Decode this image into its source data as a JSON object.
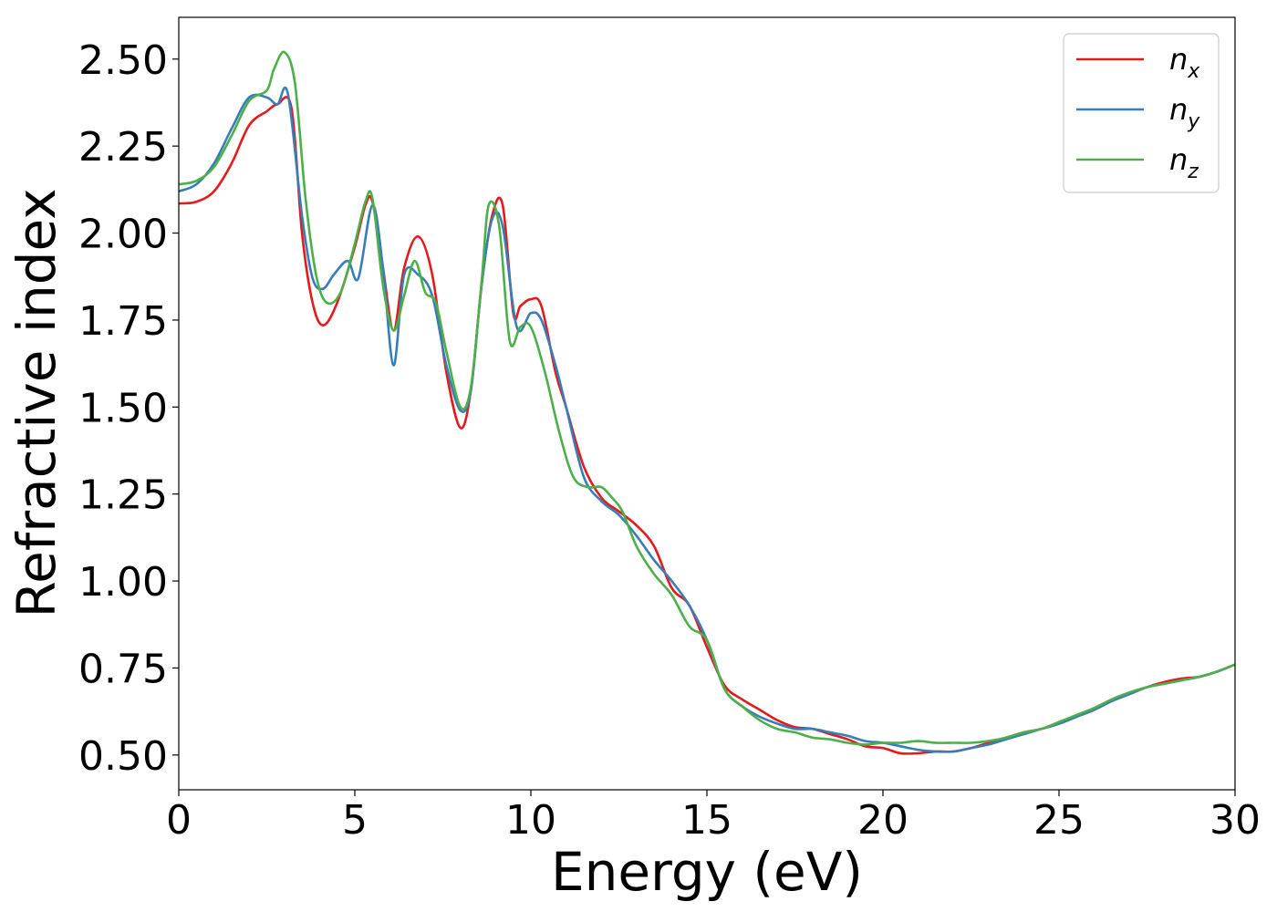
{
  "chart_data": {
    "type": "line",
    "xlabel": "Energy (eV)",
    "ylabel": "Refractive index",
    "xlim": [
      0,
      30
    ],
    "ylim": [
      0.4,
      2.62
    ],
    "xticks": [
      0,
      5,
      10,
      15,
      20,
      25,
      30
    ],
    "xtick_labels": [
      "0",
      "5",
      "10",
      "15",
      "20",
      "25",
      "30"
    ],
    "yticks": [
      0.5,
      0.75,
      1.0,
      1.25,
      1.5,
      1.75,
      2.0,
      2.25,
      2.5
    ],
    "ytick_labels": [
      "0.50",
      "0.75",
      "1.00",
      "1.25",
      "1.50",
      "1.75",
      "2.00",
      "2.25",
      "2.50"
    ],
    "grid": false,
    "legend_position": "top-right",
    "series": [
      {
        "name": "n",
        "subscript": "x",
        "color": "#e41a1c",
        "x": [
          0,
          0.5,
          1,
          1.5,
          2,
          2.5,
          2.8,
          3.2,
          3.5,
          3.8,
          4.1,
          4.5,
          5,
          5.3,
          5.5,
          5.8,
          6.1,
          6.4,
          6.8,
          7.2,
          7.6,
          8,
          8.3,
          8.6,
          8.9,
          9.2,
          9.5,
          9.7,
          10,
          10.3,
          10.7,
          11,
          11.5,
          12,
          12.5,
          13,
          13.5,
          14,
          14.5,
          15,
          15.5,
          16,
          16.5,
          17,
          17.5,
          18,
          18.5,
          19,
          19.5,
          20,
          20.5,
          21,
          21.5,
          22,
          22.5,
          23,
          23.5,
          24,
          24.5,
          25,
          25.5,
          26,
          26.5,
          27,
          27.5,
          28,
          28.5,
          29,
          29.5,
          30
        ],
        "y": [
          2.085,
          2.09,
          2.12,
          2.2,
          2.31,
          2.35,
          2.37,
          2.36,
          2.0,
          1.8,
          1.735,
          1.8,
          1.96,
          2.08,
          2.09,
          1.9,
          1.72,
          1.9,
          1.99,
          1.88,
          1.6,
          1.44,
          1.55,
          1.85,
          2.05,
          2.08,
          1.77,
          1.79,
          1.81,
          1.79,
          1.6,
          1.5,
          1.33,
          1.24,
          1.2,
          1.16,
          1.1,
          0.98,
          0.93,
          0.81,
          0.7,
          0.66,
          0.63,
          0.6,
          0.58,
          0.575,
          0.56,
          0.545,
          0.525,
          0.52,
          0.505,
          0.505,
          0.51,
          0.51,
          0.52,
          0.535,
          0.55,
          0.565,
          0.575,
          0.59,
          0.61,
          0.63,
          0.655,
          0.675,
          0.695,
          0.71,
          0.72,
          0.725,
          0.74,
          0.76
        ]
      },
      {
        "name": "n",
        "subscript": "y",
        "color": "#377eb8",
        "x": [
          0,
          0.5,
          1,
          1.5,
          2,
          2.5,
          2.8,
          3.1,
          3.5,
          3.8,
          4.1,
          4.4,
          4.8,
          5.1,
          5.5,
          5.8,
          6.1,
          6.4,
          6.8,
          7.2,
          7.6,
          8,
          8.3,
          8.6,
          8.9,
          9.2,
          9.6,
          10,
          10.3,
          10.7,
          11,
          11.5,
          12,
          12.5,
          13,
          13.5,
          14,
          14.5,
          15,
          15.5,
          16,
          16.5,
          17,
          17.5,
          18,
          18.5,
          19,
          19.5,
          20,
          20.5,
          21,
          21.5,
          22,
          22.5,
          23,
          23.5,
          24,
          24.5,
          25,
          25.5,
          26,
          26.5,
          27,
          27.5,
          28,
          28.5,
          29,
          29.5,
          30
        ],
        "y": [
          2.12,
          2.14,
          2.2,
          2.3,
          2.39,
          2.39,
          2.37,
          2.4,
          2.05,
          1.87,
          1.84,
          1.88,
          1.92,
          1.87,
          2.08,
          1.9,
          1.62,
          1.88,
          1.88,
          1.82,
          1.62,
          1.49,
          1.55,
          1.85,
          2.04,
          2.02,
          1.73,
          1.77,
          1.75,
          1.62,
          1.5,
          1.3,
          1.23,
          1.19,
          1.13,
          1.06,
          1.0,
          0.93,
          0.83,
          0.69,
          0.64,
          0.61,
          0.59,
          0.575,
          0.575,
          0.565,
          0.555,
          0.54,
          0.535,
          0.525,
          0.515,
          0.51,
          0.51,
          0.52,
          0.53,
          0.545,
          0.56,
          0.575,
          0.59,
          0.61,
          0.63,
          0.655,
          0.675,
          0.695,
          0.705,
          0.715,
          0.725,
          0.74,
          0.76
        ]
      },
      {
        "name": "n",
        "subscript": "z",
        "color": "#4daf4a",
        "x": [
          0,
          0.5,
          1,
          1.5,
          2,
          2.5,
          2.7,
          3,
          3.3,
          3.6,
          3.9,
          4.2,
          4.6,
          5,
          5.3,
          5.5,
          5.8,
          6.1,
          6.4,
          6.7,
          7,
          7.3,
          7.6,
          8,
          8.3,
          8.6,
          8.8,
          9.1,
          9.4,
          9.7,
          10,
          10.4,
          10.8,
          11.2,
          11.6,
          12,
          12.3,
          12.6,
          13,
          13.5,
          14,
          14.5,
          15,
          15.5,
          16,
          16.5,
          17,
          17.5,
          18,
          18.5,
          19,
          19.5,
          20,
          20.5,
          21,
          21.5,
          22,
          22.5,
          23,
          23.5,
          24,
          24.5,
          25,
          25.5,
          26,
          26.5,
          27,
          27.5,
          28,
          28.5,
          29,
          29.5,
          30
        ],
        "y": [
          2.14,
          2.15,
          2.19,
          2.28,
          2.38,
          2.41,
          2.47,
          2.52,
          2.43,
          2.1,
          1.88,
          1.8,
          1.83,
          1.97,
          2.09,
          2.1,
          1.85,
          1.72,
          1.82,
          1.92,
          1.83,
          1.8,
          1.66,
          1.5,
          1.56,
          1.86,
          2.08,
          2.02,
          1.69,
          1.73,
          1.73,
          1.6,
          1.43,
          1.3,
          1.27,
          1.27,
          1.24,
          1.2,
          1.1,
          1.02,
          0.96,
          0.87,
          0.83,
          0.69,
          0.64,
          0.6,
          0.575,
          0.565,
          0.55,
          0.545,
          0.535,
          0.53,
          0.535,
          0.535,
          0.54,
          0.535,
          0.535,
          0.535,
          0.54,
          0.55,
          0.565,
          0.575,
          0.595,
          0.615,
          0.635,
          0.66,
          0.68,
          0.695,
          0.705,
          0.715,
          0.725,
          0.74,
          0.76
        ]
      }
    ]
  }
}
